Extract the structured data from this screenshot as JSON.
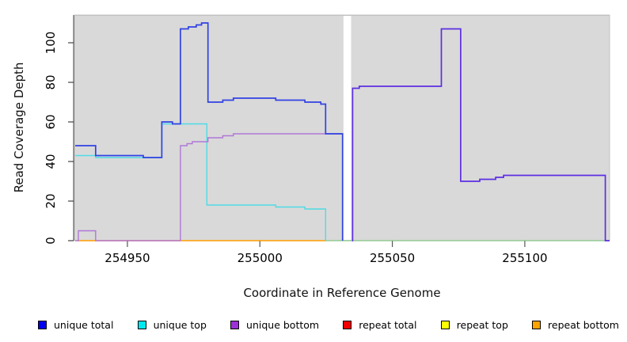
{
  "chart_data": {
    "type": "line",
    "subtype": "step-coverage-plot",
    "title": "",
    "xlabel": "Coordinate in Reference Genome",
    "ylabel": "Read Coverage Depth",
    "x_ticks": [
      254950,
      255000,
      255050,
      255100
    ],
    "x_tick_labels": [
      "254950",
      "255000",
      "255050",
      "255100"
    ],
    "y_ticks": [
      0,
      20,
      40,
      60,
      80,
      100
    ],
    "y_tick_labels": [
      "0",
      "20",
      "40",
      "60",
      "80",
      "100"
    ],
    "x_range": [
      254930,
      255132
    ],
    "y_range": [
      0,
      114
    ],
    "grid": false,
    "panel_bg": "#d9d9d9",
    "gap": {
      "x_start": 255031.2,
      "x_end": 255034.8,
      "color": "#ffffff"
    },
    "legend_position": "bottom",
    "legend": [
      {
        "label": "unique total",
        "color": "#0000f0"
      },
      {
        "label": "unique top",
        "color": "#00e8f0"
      },
      {
        "label": "unique bottom",
        "color": "#9c2fd6"
      },
      {
        "label": "repeat total",
        "color": "#f00000"
      },
      {
        "label": "repeat top",
        "color": "#ffff00"
      },
      {
        "label": "repeat bottom",
        "color": "#ffa300"
      }
    ],
    "series": [
      {
        "name": "repeat bottom",
        "line_color": "#ff9d00",
        "z": 1,
        "width": 1.6,
        "segments": [
          {
            "points": [
              [
                254931,
                0
              ]
            ],
            "end": [
              255025
            ]
          }
        ]
      },
      {
        "name": "zero baseline right (green, unlabeled)",
        "line_color": "#85c585",
        "z": 1,
        "width": 1.3,
        "segments": [
          {
            "points": [
              [
                255024.8,
                0
              ]
            ],
            "end": [
              255132
            ]
          }
        ]
      },
      {
        "name": "unique top",
        "line_color": "#4fdbe6",
        "z": 2,
        "width": 1.4,
        "segments": [
          {
            "points": [
              [
                254930.3,
                43
              ],
              [
                254938,
                42
              ],
              [
                254963,
                59
              ],
              [
                254980,
                18
              ],
              [
                255006,
                17
              ],
              [
                255017,
                16
              ]
            ],
            "end": [
              255024.8,
              0
            ]
          }
        ]
      },
      {
        "name": "unique bottom",
        "line_color": "#b078d8",
        "z": 3,
        "width": 1.4,
        "segments": [
          {
            "points": [
              [
                254930.3,
                0
              ],
              [
                254931.5,
                5
              ],
              [
                254938,
                0
              ],
              [
                254970,
                48
              ],
              [
                254972.5,
                49
              ],
              [
                254974.5,
                50
              ],
              [
                254980.4,
                52
              ],
              [
                254986,
                53
              ],
              [
                254990,
                54
              ]
            ],
            "end": [
              255031.2,
              0
            ]
          }
        ]
      },
      {
        "name": "unique total",
        "line_color": "#3142e3",
        "z": 4,
        "width": 1.7,
        "segments": [
          {
            "points": [
              [
                254930.3,
                48
              ],
              [
                254938,
                43
              ],
              [
                254956,
                42
              ],
              [
                254963,
                60
              ],
              [
                254967,
                59
              ],
              [
                254970,
                107
              ],
              [
                254973,
                108
              ],
              [
                254976,
                109
              ],
              [
                254978,
                110
              ],
              [
                254980.4,
                70
              ],
              [
                254986,
                71
              ],
              [
                254990,
                72
              ],
              [
                255006,
                71
              ],
              [
                255017,
                70
              ],
              [
                255023,
                69
              ],
              [
                255024.8,
                54
              ]
            ],
            "end": [
              255031.2,
              0
            ]
          }
        ]
      },
      {
        "name": "unique total + unique bottom (overlapping, right of gap)",
        "line_color": "#5d2ee2",
        "z": 5,
        "width": 1.7,
        "segments": [
          {
            "points": [
              [
                255034.8,
                0
              ],
              [
                255035,
                77
              ],
              [
                255037.5,
                78
              ],
              [
                255068.5,
                107
              ],
              [
                255075.8,
                30
              ],
              [
                255083,
                31
              ],
              [
                255089,
                32
              ],
              [
                255092,
                33
              ]
            ],
            "end": [
              255130.4,
              0
            ],
            "tail": 255132
          }
        ]
      },
      {
        "name": "repeat total",
        "line_color": "#f00000",
        "z": 0,
        "width": 1,
        "segments": []
      },
      {
        "name": "repeat top",
        "line_color": "#ffff00",
        "z": 0,
        "width": 1,
        "segments": []
      }
    ]
  }
}
